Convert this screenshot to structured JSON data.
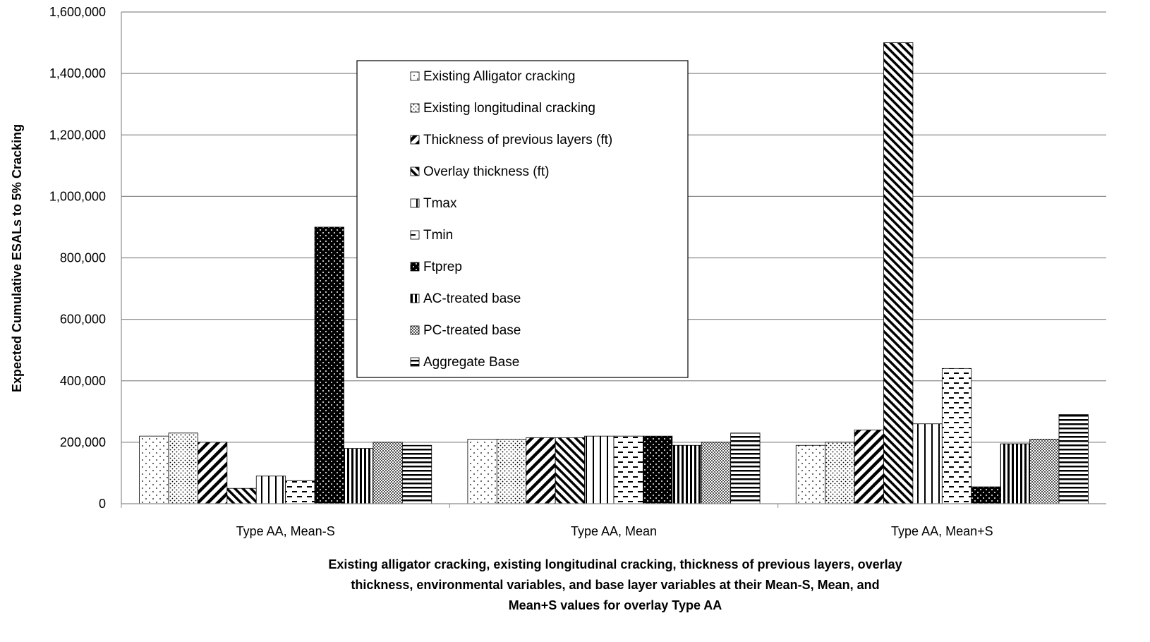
{
  "chart_data": {
    "type": "bar",
    "title": "",
    "ylabel": "Expected Cumulative ESALs to 5% Cracking",
    "xlabel_lines": [
      "Existing alligator cracking, existing longitudinal cracking, thickness of previous layers, overlay",
      "thickness, environmental variables, and base layer variables at their Mean-S, Mean, and",
      "Mean+S values for overlay Type AA"
    ],
    "ylim": [
      0,
      1600000
    ],
    "yticks": [
      0,
      200000,
      400000,
      600000,
      800000,
      1000000,
      1200000,
      1400000,
      1600000
    ],
    "ytick_labels": [
      "0",
      "200,000",
      "400,000",
      "600,000",
      "800,000",
      "1,000,000",
      "1,200,000",
      "1,400,000",
      "1,600,000"
    ],
    "grid": true,
    "legend_placement": "upper-center",
    "categories": [
      "Type AA, Mean-S",
      "Type AA, Mean",
      "Type AA, Mean+S"
    ],
    "series": [
      {
        "name": "Existing Alligator cracking",
        "pattern": "sparse-dots",
        "values": [
          220000,
          210000,
          190000
        ]
      },
      {
        "name": "Existing longitudinal cracking",
        "pattern": "dense-dots",
        "values": [
          230000,
          210000,
          200000
        ]
      },
      {
        "name": "Thickness of previous layers (ft)",
        "pattern": "wide-upward-diagonal",
        "values": [
          200000,
          215000,
          240000
        ]
      },
      {
        "name": "Overlay thickness (ft)",
        "pattern": "wide-downward-diagonal",
        "values": [
          50000,
          215000,
          1500000
        ]
      },
      {
        "name": "Tmax",
        "pattern": "wide-vertical",
        "values": [
          90000,
          220000,
          260000
        ]
      },
      {
        "name": "Tmin",
        "pattern": "dashed-horizontal",
        "values": [
          75000,
          220000,
          440000
        ]
      },
      {
        "name": "Ftprep",
        "pattern": "dark-dotted",
        "values": [
          900000,
          220000,
          55000
        ]
      },
      {
        "name": "AC-treated base",
        "pattern": "narrow-vertical",
        "values": [
          180000,
          190000,
          195000
        ]
      },
      {
        "name": "PC-treated base",
        "pattern": "cross-hatch",
        "values": [
          200000,
          200000,
          210000
        ]
      },
      {
        "name": "Aggregate Base",
        "pattern": "narrow-horizontal",
        "values": [
          190000,
          230000,
          290000
        ]
      }
    ]
  }
}
